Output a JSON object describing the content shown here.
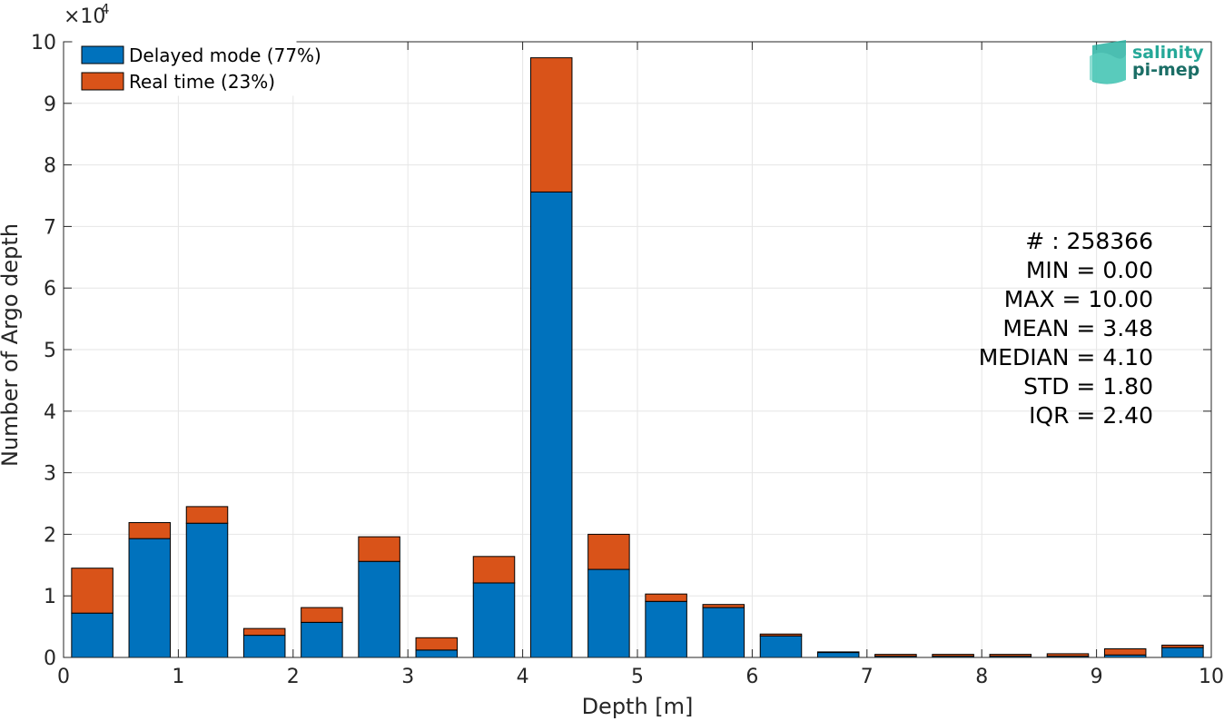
{
  "chart_data": {
    "type": "bar",
    "stacked": true,
    "title": "",
    "xlabel": "Depth [m]",
    "ylabel": "Number of Argo depth",
    "xlim": [
      0,
      10
    ],
    "ylim": [
      0,
      10
    ],
    "y_exponent_label": "×10",
    "y_exponent_power": "4",
    "xticks": [
      0,
      1,
      2,
      3,
      4,
      5,
      6,
      7,
      8,
      9,
      10
    ],
    "yticks": [
      0,
      1,
      2,
      3,
      4,
      5,
      6,
      7,
      8,
      9,
      10
    ],
    "grid": true,
    "legend_position": "top-left",
    "bin_width": 0.36,
    "x": [
      0.25,
      0.75,
      1.25,
      1.75,
      2.25,
      2.75,
      3.25,
      3.75,
      4.25,
      4.75,
      5.25,
      5.75,
      6.25,
      6.75,
      7.25,
      7.75,
      8.25,
      8.75,
      9.25,
      9.75
    ],
    "series": [
      {
        "name": "Delayed mode (77%)",
        "color": "#0072BD",
        "values": [
          0.72,
          1.93,
          2.18,
          0.36,
          0.57,
          1.56,
          0.12,
          1.21,
          7.56,
          1.43,
          0.91,
          0.81,
          0.35,
          0.08,
          0.02,
          0.02,
          0.02,
          0.02,
          0.04,
          0.16
        ]
      },
      {
        "name": "Real time (23%)",
        "color": "#D95319",
        "values": [
          0.73,
          0.26,
          0.27,
          0.11,
          0.24,
          0.4,
          0.2,
          0.43,
          2.18,
          0.57,
          0.12,
          0.05,
          0.03,
          0.01,
          0.03,
          0.03,
          0.03,
          0.04,
          0.1,
          0.04
        ]
      }
    ],
    "stats": [
      "# : 258366",
      "MIN = 0.00",
      "MAX =  10.00",
      "MEAN = 3.48",
      "MEDIAN = 4.10",
      "STD = 1.80",
      "IQR = 2.40"
    ]
  },
  "logo": {
    "line1": "salinity",
    "line2": "pi-mep",
    "color1": "#25A898",
    "color2": "#1B6E66"
  }
}
